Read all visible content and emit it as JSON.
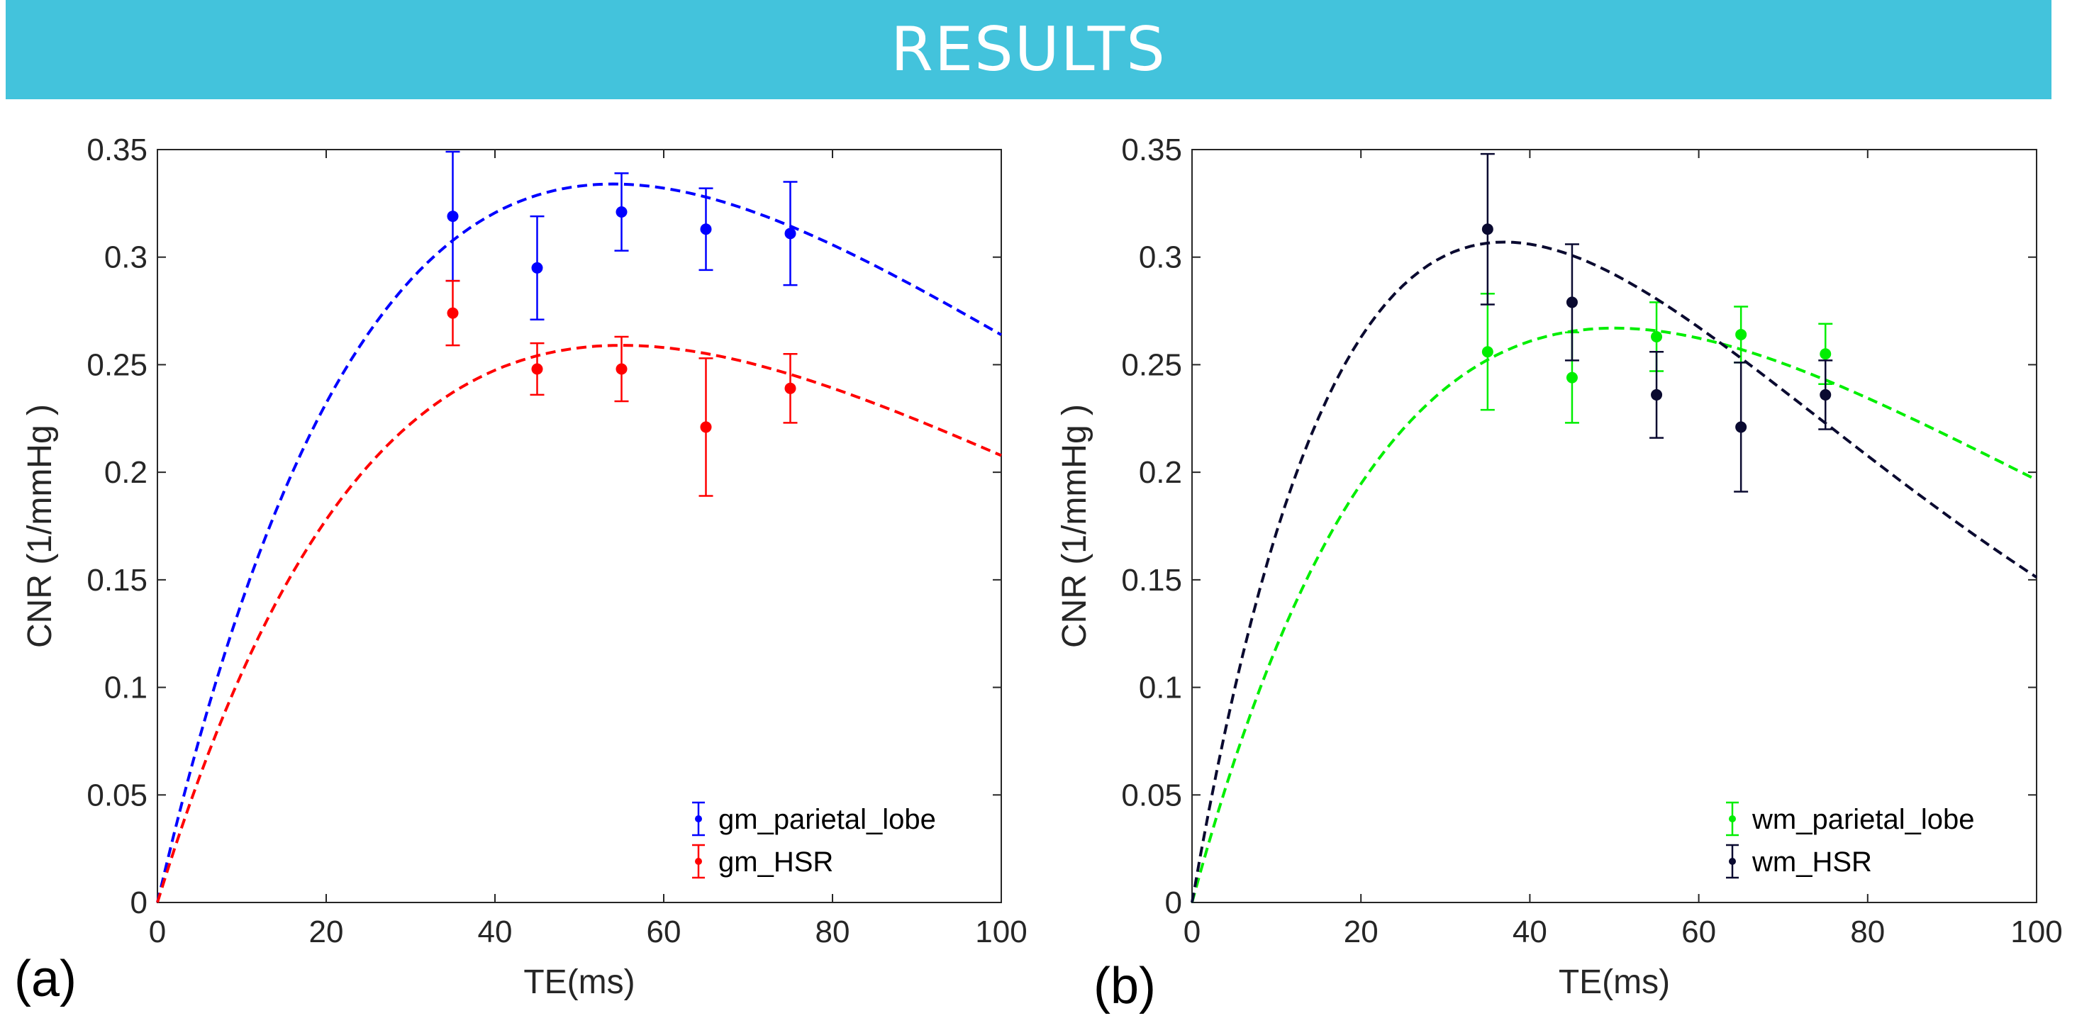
{
  "banner": {
    "title": "RESULTS"
  },
  "chart_data": [
    {
      "type": "line",
      "panel_label": "(a)",
      "xlabel": "TE(ms)",
      "ylabel": "CNR (1/mmHg )",
      "xlim": [
        0,
        100
      ],
      "ylim": [
        0,
        0.35
      ],
      "xticks": [
        0,
        20,
        40,
        60,
        80,
        100
      ],
      "yticks": [
        0,
        0.05,
        0.1,
        0.15,
        0.2,
        0.25,
        0.3,
        0.35
      ],
      "ytick_labels": [
        "0",
        "0.05",
        "0.1",
        "0.15",
        "0.2",
        "0.25",
        "0.3",
        "0.35"
      ],
      "legend_position": "bottom-right",
      "series": [
        {
          "name": "gm_parietal_lobe",
          "color": "#0000ff",
          "x": [
            35,
            45,
            55,
            65,
            75
          ],
          "y": [
            0.319,
            0.295,
            0.321,
            0.313,
            0.311
          ],
          "err": [
            0.03,
            0.024,
            0.018,
            0.019,
            0.024
          ],
          "fit_peak_x": 54,
          "fit_peak_y": 0.334
        },
        {
          "name": "gm_HSR",
          "color": "#ff0000",
          "x": [
            35,
            45,
            55,
            65,
            75
          ],
          "y": [
            0.274,
            0.248,
            0.248,
            0.221,
            0.239
          ],
          "err": [
            0.015,
            0.012,
            0.015,
            0.032,
            0.016
          ],
          "fit_peak_x": 55,
          "fit_peak_y": 0.259
        }
      ]
    },
    {
      "type": "line",
      "panel_label": "(b)",
      "xlabel": "TE(ms)",
      "ylabel": "CNR (1/mmHg )",
      "xlim": [
        0,
        100
      ],
      "ylim": [
        0,
        0.35
      ],
      "xticks": [
        0,
        20,
        40,
        60,
        80,
        100
      ],
      "yticks": [
        0,
        0.05,
        0.1,
        0.15,
        0.2,
        0.25,
        0.3,
        0.35
      ],
      "ytick_labels": [
        "0",
        "0.05",
        "0.1",
        "0.15",
        "0.2",
        "0.25",
        "0.3",
        "0.35"
      ],
      "legend_position": "bottom-right",
      "series": [
        {
          "name": "wm_parietal_lobe",
          "color": "#00ee00",
          "x": [
            35,
            45,
            55,
            65,
            75
          ],
          "y": [
            0.256,
            0.244,
            0.263,
            0.264,
            0.255
          ],
          "err": [
            0.027,
            0.021,
            0.016,
            0.013,
            0.014
          ],
          "fit_peak_x": 50,
          "fit_peak_y": 0.267
        },
        {
          "name": "wm_HSR",
          "color": "#0a0a30",
          "x": [
            35,
            45,
            55,
            65,
            75
          ],
          "y": [
            0.313,
            0.279,
            0.236,
            0.221,
            0.236
          ],
          "err": [
            0.035,
            0.027,
            0.02,
            0.03,
            0.016
          ],
          "fit_peak_x": 37,
          "fit_peak_y": 0.307
        }
      ]
    }
  ]
}
